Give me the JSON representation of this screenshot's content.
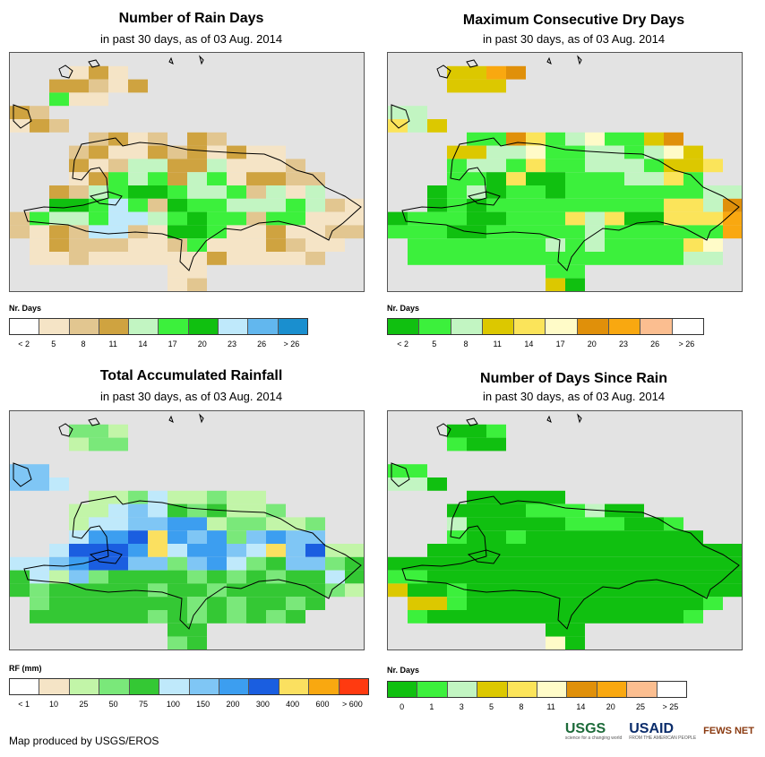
{
  "panels": [
    {
      "id": "rain-days",
      "title": "Number of Rain Days",
      "subtitle": "in past 30 days, as of 03 Aug. 2014",
      "legend_title": "Nr. Days",
      "legend_colors": [
        "#ffffff",
        "#f5e4c6",
        "#e2c690",
        "#cfa340",
        "#c2f5c2",
        "#3cf03c",
        "#10c010",
        "#bfe9fb",
        "#62b7ee",
        "#1a8fcf"
      ],
      "legend_labels": [
        "< 2",
        "5",
        "8",
        "11",
        "14",
        "17",
        "20",
        "23",
        "26",
        "> 26"
      ],
      "palette": {
        "a": "#f5e4c6",
        "b": "#e2c690",
        "c": "#cfa340",
        "d": "#c2f5c2",
        "e": "#3cf03c",
        "f": "#10c010",
        "g": "#bfe9fb",
        "h": "#62b7ee"
      },
      "grid": [
        "..................",
        "...aca............",
        "..ccbac...........",
        "..eaa.............",
        "cb................",
        "acb...............",
        "....bcab.cb.......",
        "...bcaacbcacaa....",
        "...cabddccdaaab...",
        "...acedecdeaccbb..",
        "..cbdeffeddebdad..",
        "..ffegebfeedddedba",
        "beddeggdefeebeeaaa",
        "bacbggbaffeaacaabb",
        ".acbbbaabeaaacbaa.",
        ".aabaaaaaacaaaab..",
        "........aa........",
        "........ab........"
      ]
    },
    {
      "id": "max-dry-days",
      "title": "Maximum Consecutive Dry Days",
      "subtitle": "in past 30 days, as of 03 Aug. 2014",
      "legend_title": "Nr. Days",
      "legend_colors": [
        "#10c010",
        "#3cf03c",
        "#c2f5c2",
        "#dcc800",
        "#fbe45a",
        "#fffbc8",
        "#e0900a",
        "#f9a810",
        "#fbbe90",
        "#ffffff"
      ],
      "legend_labels": [
        "< 2",
        "5",
        "8",
        "11",
        "14",
        "17",
        "20",
        "23",
        "26",
        "> 26"
      ],
      "palette": {
        "a": "#10c010",
        "b": "#3cf03c",
        "c": "#c2f5c2",
        "d": "#dcc800",
        "e": "#fbe45a",
        "f": "#fffbc8",
        "g": "#e0900a",
        "h": "#f9a810",
        "i": "#fbbe90"
      },
      "grid": [
        "..................",
        "...ddhg...........",
        "...ddd............",
        "..................",
        "cc................",
        "ecd...............",
        "....bbgebcfbbdg...",
        "...ddccfbbccbcfd..",
        "...bccbebbcccbdde.",
        "...bbaeaabbbcceb..",
        "..abcabbabbbbbbbcc",
        "..ababbbbbbbbbeecg",
        "abbbaabbbeceaaeeeh",
        "bbbaabbbbbcbbbbbbh",
        ".bbbbbbbcbcbbbbef.",
        ".bbbbbbbbbbbbbbcc.",
        "........bb........",
        "........da........"
      ]
    },
    {
      "id": "total-rainfall",
      "title": "Total Accumulated Rainfall",
      "subtitle": "in past 30 days, as of 03 Aug. 2014",
      "legend_title": "RF (mm)",
      "legend_colors": [
        "#ffffff",
        "#f5e4c6",
        "#c2f5a8",
        "#7ae87a",
        "#34c834",
        "#bfe9fb",
        "#7fc6f5",
        "#3c9ef0",
        "#1a5ee0",
        "#fbe060",
        "#f9a810",
        "#ff3a10"
      ],
      "legend_labels": [
        "< 1",
        "10",
        "25",
        "50",
        "75",
        "100",
        "150",
        "200",
        "300",
        "400",
        "600",
        "> 600"
      ],
      "palette": {
        "a": "#f5e4c6",
        "b": "#c2f5a8",
        "c": "#7ae87a",
        "d": "#34c834",
        "e": "#bfe9fb",
        "f": "#7fc6f5",
        "g": "#3c9ef0",
        "h": "#1a5ee0",
        "i": "#fbe060"
      },
      "grid": [
        "..................",
        "...ccb............",
        "...bcc............",
        "..................",
        "ff................",
        "ffe...............",
        "....bbcebbcbb.....",
        "...bbefedcdbbc....",
        "...beeffggbccbbc..",
        "...egghigfgcfgff..",
        "..ehhhgieggfeifhbb",
        "eefghhffcfgecdffcd",
        "debfcddddcdcdcdded",
        "dcdddddcddcdddddcb",
        ".cdddddddcdcddcd..",
        ".ddddddcdcdcdcd...",
        "........dd........",
        "........cd........"
      ]
    },
    {
      "id": "days-since-rain",
      "title": "Number of Days Since Rain",
      "subtitle": "in past 30 days, as of 03 Aug. 2014",
      "legend_title": "Nr. Days",
      "legend_colors": [
        "#10c010",
        "#3cf03c",
        "#c2f5c2",
        "#dcc800",
        "#fbe45a",
        "#fffbc8",
        "#e0900a",
        "#f9a810",
        "#fbbe90",
        "#ffffff"
      ],
      "legend_labels": [
        "0",
        "1",
        "3",
        "5",
        "8",
        "11",
        "14",
        "20",
        "25",
        "> 25"
      ],
      "palette": {
        "a": "#10c010",
        "b": "#3cf03c",
        "c": "#c2f5c2",
        "d": "#dcc800",
        "e": "#fbe45a",
        "f": "#fffbc8",
        "g": "#e0900a"
      },
      "grid": [
        "..................",
        "...aab............",
        "...baa............",
        "..................",
        "bb................",
        "cca...............",
        "....aaaaa.........",
        "...aaaabbbcaa.....",
        "...caaaaabbbaab...",
        "...baabaaaaaaaaa..",
        "..aaaaaaaaaaaaaaaa",
        "aaaaaaaaaaaaaaaaaa",
        "bbaaaaaaaaaaaaaaaa",
        "daabaaaaaaaaaaaaaa",
        ".ddbaaaaaaaaaaaab.",
        ".baaaaaaaaaaaaab..",
        "........aa........",
        "........fa........"
      ]
    }
  ],
  "footer": {
    "credit": "Map produced by USGS/EROS"
  },
  "logos": {
    "usgs": "USGS",
    "usgs_tagline": "science for a changing world",
    "usaid": "USAID",
    "usaid_tagline": "FROM THE AMERICAN PEOPLE",
    "fewsnet": "FEWS NET"
  }
}
